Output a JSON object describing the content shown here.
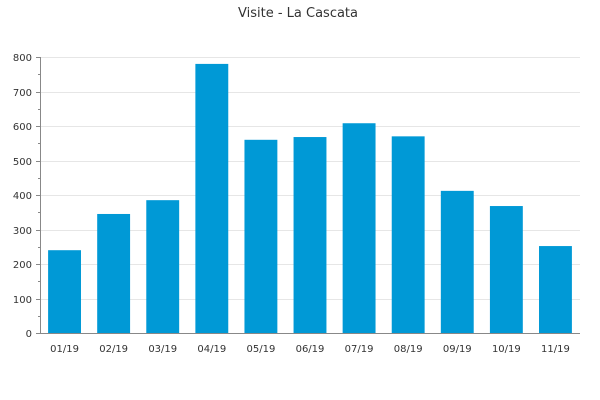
{
  "chart_data": {
    "type": "bar",
    "title": "Visite - La Cascata",
    "xlabel": "",
    "ylabel": "",
    "categories": [
      "01/19",
      "02/19",
      "03/19",
      "04/19",
      "05/19",
      "06/19",
      "07/19",
      "08/19",
      "09/19",
      "10/19",
      "11/19"
    ],
    "values": [
      240,
      345,
      385,
      780,
      560,
      568,
      608,
      570,
      412,
      368,
      252
    ],
    "ylim": [
      0,
      800
    ],
    "yticks": [
      0,
      100,
      200,
      300,
      400,
      500,
      600,
      700,
      800
    ],
    "grid": true,
    "legend": "none",
    "bar_color": "#0099d6"
  }
}
